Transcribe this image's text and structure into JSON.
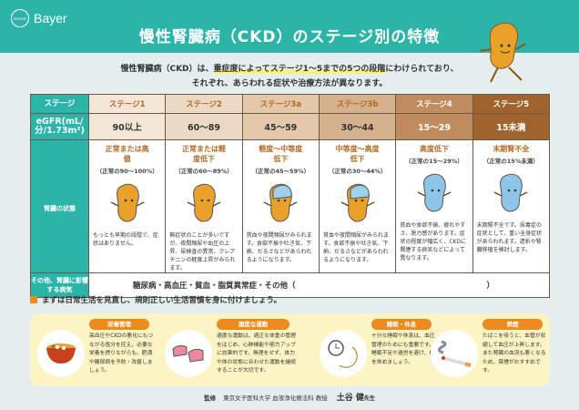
{
  "brand": {
    "name": "Bayer",
    "logo_text": "BAYER"
  },
  "title": "慢性腎臓病（CKD）のステージ別の特徴",
  "intro": {
    "line1_pre": "慢性腎臓病（CKD）は、",
    "line1_highlight": "重症度によってステージ1〜5までの5つの段階",
    "line1_post": "にわけられており、",
    "line2": "それぞれ、あらわれる症状や治療方法が異なります。"
  },
  "table": {
    "row_labels": {
      "stage": "ステージ",
      "egfr": "eGFR(mL/分/1.73m²)",
      "status": "腎臓の状態",
      "other": "その他、腎臓に影響する病気"
    },
    "stages": [
      {
        "name": "ステージ1",
        "egfr": "90以上",
        "state": "正常または高値",
        "percent": "（正常の90〜100%）",
        "desc": "もっとも早期の段階で、症状はありません。",
        "color": "#f3e6d6",
        "text_color": "#b06a25",
        "mascot": "orange"
      },
      {
        "name": "ステージ2",
        "egfr": "60〜89",
        "state": "正常または軽度低下",
        "percent": "（正常の60〜89%）",
        "desc": "無症状のことが多いですが、夜間頻尿や血圧の上昇、尿検査の異常、クレアチニンの軽度上昇がみられます。",
        "color": "#ecd9c3",
        "text_color": "#b06a25",
        "mascot": "orange"
      },
      {
        "name": "ステージ3a",
        "egfr": "45〜59",
        "state": "軽度〜中等度低下",
        "percent": "（正常の45〜59%）",
        "desc": "貧血や夜間頻尿がみられます。食欲不振や吐き気、下痢、だるさなどがあらわれるようになります。",
        "color": "#e3c8a9",
        "text_color": "#b06a25",
        "mascot": "half"
      },
      {
        "name": "ステージ3b",
        "egfr": "30〜44",
        "state": "中等度〜高度低下",
        "percent": "（正常の30〜44%）",
        "desc": "貧血や夜間頻尿がみられます。食欲不振や吐き気、下痢、だるさなどがあらわれるようになります。",
        "color": "#d5b18d",
        "text_color": "#b06a25",
        "mascot": "half"
      },
      {
        "name": "ステージ4",
        "egfr": "15〜29",
        "state": "高度低下",
        "percent": "（正常の15〜29%）",
        "desc": "貧血や食欲不振、疲れやすさ、脱力感があります。症状の程度が幅広く、CKDに関連する病気などによって異なります。",
        "color": "#c08b5d",
        "text_color": "#ffffff",
        "mascot": "blue"
      },
      {
        "name": "ステージ5",
        "egfr": "15未満",
        "state": "末期腎不全",
        "percent": "（正常の15%未満）",
        "desc": "末期腎不全です。尿毒症の症状として、重い全身症状があらわれます。透析や腎臓移植を検討します。",
        "color": "#a1632d",
        "text_color": "#ffffff",
        "mascot": "blue"
      }
    ],
    "other_diseases": "糖尿病・高血圧・貧血・脂質異常症・その他（",
    "other_close": "）"
  },
  "note": "まずは日常生活を見直し、規則正しい生活習慣を身に付けましょう。",
  "tips": [
    {
      "title": "栄養管理",
      "text": "高血圧やCKDの悪化にもつながる塩分を控え、必要な栄養を摂りながらも、肥満や糖尿病を予防・改善しましょう。",
      "icon": "soup-bowl-icon"
    },
    {
      "title": "適度な運動",
      "text": "適度な運動は、適正な体重の管理をはじめ、心肺機能や筋力アップに効果的です。無理をせず、体力や体の状態に合わせた運動を継続することが大切です。",
      "icon": "sneakers-icon"
    },
    {
      "title": "睡眠・休息",
      "text": "十分な睡眠や休息は、血圧管理のためにも重要です。睡眠不足や過労を避け、体を休めましょう。",
      "icon": "clock-moon-icon"
    },
    {
      "title": "禁煙",
      "text": "たばこを吸うと、血管が収縮して血圧が上昇します。また腎臓の血流も悪くなるため、禁煙がおすすめです。",
      "icon": "cigarette-icon"
    }
  ],
  "footer": {
    "label": "監修",
    "affiliation": "東京女子医科大学 血液浄化療法科 教授",
    "name": "土谷 健",
    "suffix": "先生"
  },
  "colors": {
    "teal": "#2db4a9",
    "orange": "#ec8a1e",
    "tips_bg": "#fdf4c4"
  }
}
